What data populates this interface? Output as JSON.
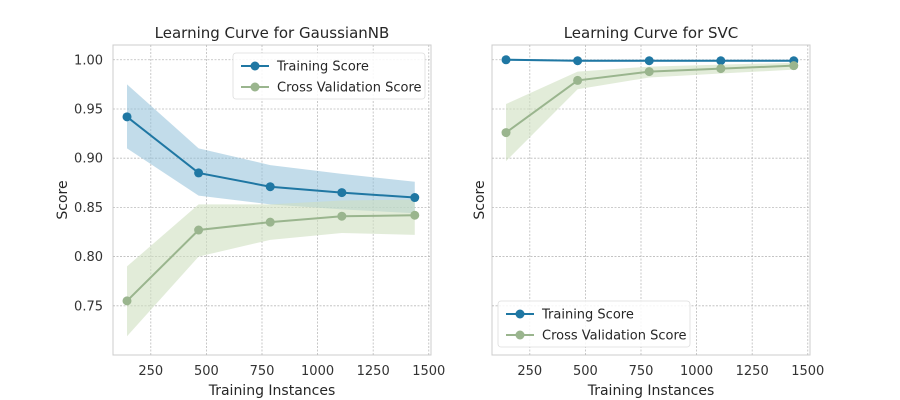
{
  "colors": {
    "training": "#1f77a3",
    "validation": "#9ab58e",
    "training_band": "#8fbfd8",
    "validation_band": "#cfe0c0"
  },
  "chart_data": [
    {
      "type": "line",
      "title": "Learning Curve for GaussianNB",
      "xlabel": "Training Instances",
      "ylabel": "Score",
      "xlim": [
        80,
        1510
      ],
      "ylim": [
        0.7,
        1.015
      ],
      "xticks": [
        250,
        500,
        750,
        1000,
        1250,
        1500
      ],
      "yticks": [
        0.75,
        0.8,
        0.85,
        0.9,
        0.95,
        1.0
      ],
      "ytick_labels": [
        "0.75",
        "0.80",
        "0.85",
        "0.90",
        "0.95",
        "1.00"
      ],
      "grid": true,
      "legend": "top-right",
      "x": [
        143,
        465,
        787,
        1109,
        1437
      ],
      "series": [
        {
          "name": "Training Score",
          "values": [
            0.942,
            0.885,
            0.871,
            0.865,
            0.86
          ],
          "band_upper": [
            0.975,
            0.91,
            0.893,
            0.884,
            0.876
          ],
          "band_lower": [
            0.91,
            0.862,
            0.853,
            0.848,
            0.844
          ]
        },
        {
          "name": "Cross Validation Score",
          "values": [
            0.755,
            0.827,
            0.835,
            0.841,
            0.842
          ],
          "band_upper": [
            0.79,
            0.853,
            0.853,
            0.857,
            0.858
          ],
          "band_lower": [
            0.719,
            0.8,
            0.817,
            0.824,
            0.822
          ]
        }
      ]
    },
    {
      "type": "line",
      "title": "Learning Curve for SVC",
      "xlabel": "Training Instances",
      "ylabel": "Score",
      "xlim": [
        80,
        1510
      ],
      "ylim": [
        0.7,
        1.015
      ],
      "xticks": [
        250,
        500,
        750,
        1000,
        1250,
        1500
      ],
      "yticks": [
        0.75,
        0.8,
        0.85,
        0.9,
        0.95,
        1.0
      ],
      "ytick_labels": [],
      "grid": true,
      "legend": "bottom-left",
      "x": [
        143,
        465,
        787,
        1109,
        1437
      ],
      "series": [
        {
          "name": "Training Score",
          "values": [
            1.0,
            0.999,
            0.999,
            0.999,
            0.999
          ],
          "band_upper": [
            1.001,
            1.0,
            1.0,
            1.0,
            1.0
          ],
          "band_lower": [
            0.999,
            0.998,
            0.998,
            0.998,
            0.998
          ]
        },
        {
          "name": "Cross Validation Score",
          "values": [
            0.926,
            0.979,
            0.988,
            0.991,
            0.994
          ],
          "band_upper": [
            0.955,
            0.988,
            0.993,
            0.995,
            0.997
          ],
          "band_lower": [
            0.897,
            0.97,
            0.982,
            0.986,
            0.99
          ]
        }
      ]
    }
  ]
}
